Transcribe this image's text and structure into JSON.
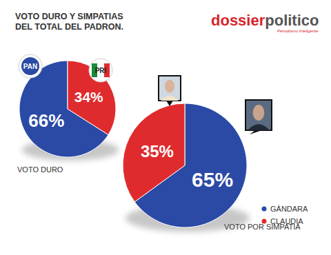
{
  "header": {
    "title": [
      "VOTO DURO Y SIMPATIAS",
      "DEL TOTAL DEL PADRON."
    ],
    "logo": [
      "dossier",
      "politico"
    ],
    "logo_tagline": "Periodismo Inteligente"
  },
  "chart_data": [
    {
      "type": "pie",
      "title": "VOTO DURO",
      "categories": [
        "PAN",
        "PRI"
      ],
      "values": [
        66,
        34
      ],
      "value_labels": [
        "66%",
        "34%"
      ],
      "colors": [
        "#2a4aa6",
        "#e02b2e"
      ],
      "data_labels": true
    },
    {
      "type": "pie",
      "title": "VOTO POR SIMPATIA",
      "categories": [
        "GÁNDARA",
        "CLAUDIA"
      ],
      "values": [
        65,
        35
      ],
      "value_labels": [
        "65%",
        "35%"
      ],
      "colors": [
        "#2a4aa6",
        "#e02b2e"
      ],
      "data_labels": true,
      "legend": "right"
    }
  ]
}
